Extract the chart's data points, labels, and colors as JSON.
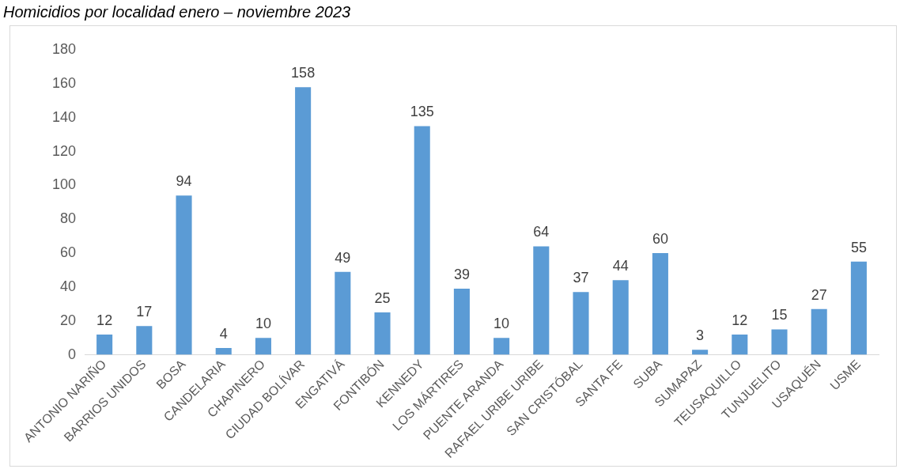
{
  "chart_data": {
    "type": "bar",
    "title": "Homicidios por localidad enero – noviembre 2023",
    "categories": [
      "ANTONIO NARIÑO",
      "BARRIOS UNIDOS",
      "BOSA",
      "CANDELARIA",
      "CHAPINERO",
      "CIUDAD BOLÍVAR",
      "ENGATIVÁ",
      "FONTIBÓN",
      "KENNEDY",
      "LOS MÁRTIRES",
      "PUENTE ARANDA",
      "RAFAEL URIBE URIBE",
      "SAN CRISTÓBAL",
      "SANTA FE",
      "SUBA",
      "SUMAPAZ",
      "TEUSAQUILLO",
      "TUNJUELITO",
      "USAQUÉN",
      "USME"
    ],
    "values": [
      12,
      17,
      94,
      4,
      10,
      158,
      49,
      25,
      135,
      39,
      10,
      64,
      37,
      44,
      60,
      3,
      12,
      15,
      27,
      55
    ],
    "color": "#5b9bd5",
    "ylim": [
      0,
      180
    ],
    "yticks": [
      0,
      20,
      40,
      60,
      80,
      100,
      120,
      140,
      160,
      180
    ],
    "grid": false,
    "data_labels": true,
    "legend": false
  }
}
